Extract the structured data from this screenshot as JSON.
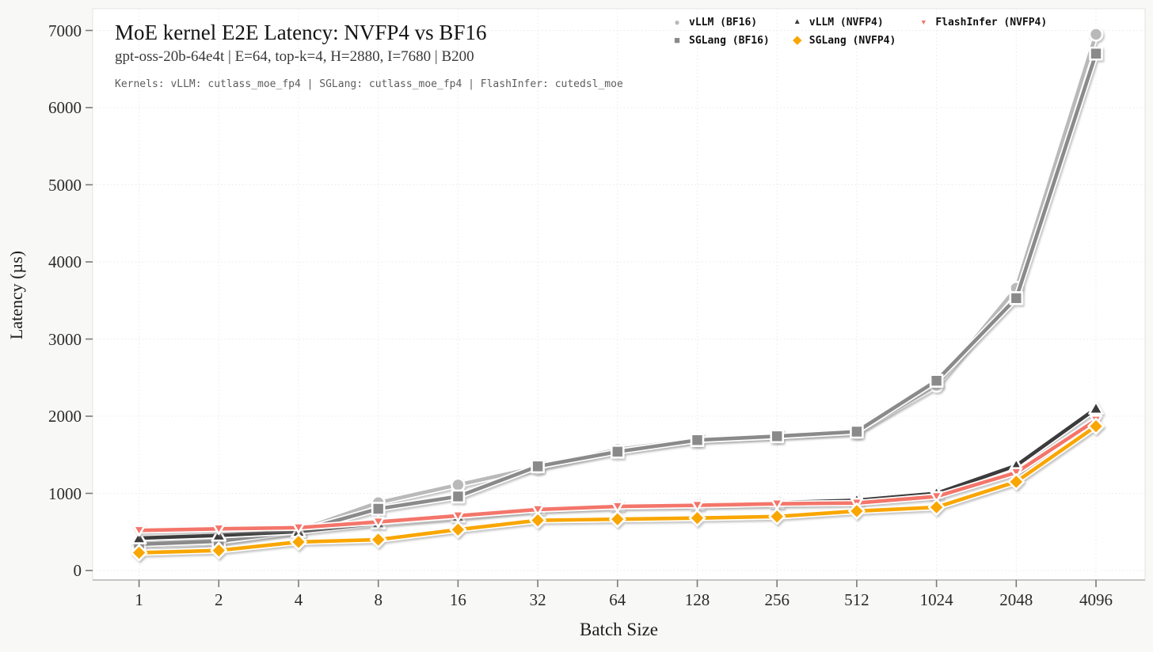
{
  "chart_data": {
    "type": "line",
    "title": "MoE kernel E2E Latency: NVFP4 vs BF16",
    "subtitle": "gpt-oss-20b-64e4t | E=64, top-k=4, H=2880, I=7680 | B200",
    "kernels_note": "Kernels: vLLM: cutlass_moe_fp4 | SGLang: cutlass_moe_fp4 | FlashInfer: cutedsl_moe",
    "xlabel": "Batch Size",
    "ylabel": "Latency (µs)",
    "x_scale": "log2",
    "grid": "dotted",
    "legend_position": "top-right",
    "categories": [
      1,
      2,
      4,
      8,
      16,
      32,
      64,
      128,
      256,
      512,
      1024,
      2048,
      4096
    ],
    "yticks": [
      0,
      1000,
      2000,
      3000,
      4000,
      5000,
      6000,
      7000
    ],
    "ylim": [
      0,
      7300
    ],
    "series": [
      {
        "name": "vLLM (BF16)",
        "marker": "circle",
        "color": "#b9b9b9",
        "values": [
          310,
          370,
          520,
          880,
          1110,
          1340,
          1570,
          1700,
          1750,
          1800,
          2400,
          3660,
          6950
        ]
      },
      {
        "name": "SGLang (BF16)",
        "marker": "square",
        "color": "#8a8a8a",
        "values": [
          340,
          380,
          510,
          800,
          960,
          1350,
          1540,
          1690,
          1740,
          1800,
          2460,
          3530,
          6700
        ]
      },
      {
        "name": "vLLM (NVFP4)",
        "marker": "triangle-up",
        "color": "#3b3b3b",
        "values": [
          420,
          455,
          505,
          615,
          700,
          800,
          845,
          860,
          880,
          910,
          1000,
          1360,
          2100
        ]
      },
      {
        "name": "FlashInfer (NVFP4)",
        "marker": "triangle-down",
        "color": "#f4756b",
        "values": [
          520,
          540,
          555,
          630,
          710,
          790,
          830,
          845,
          865,
          875,
          960,
          1270,
          1950
        ]
      },
      {
        "name": "SGLang (NVFP4)",
        "marker": "diamond",
        "color": "#f9a602",
        "values": [
          230,
          260,
          370,
          400,
          530,
          650,
          665,
          680,
          700,
          770,
          820,
          1150,
          1870
        ]
      }
    ],
    "legend_columns": [
      [
        0,
        1
      ],
      [
        2,
        4
      ],
      [
        3
      ]
    ]
  }
}
